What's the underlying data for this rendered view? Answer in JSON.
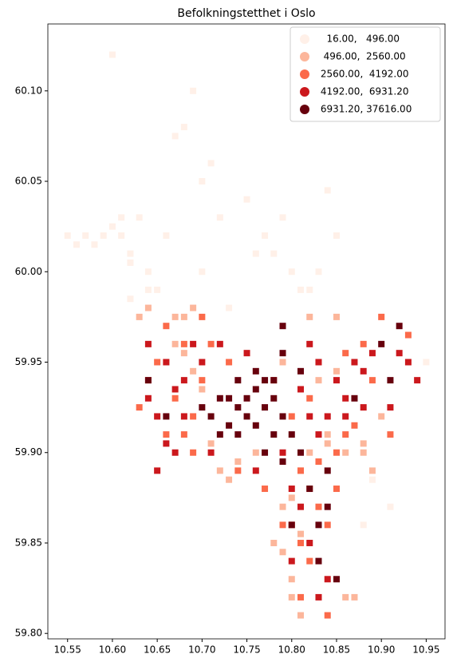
{
  "chart_data": {
    "type": "scatter",
    "title": "Befolkningstetthet i Oslo",
    "marker": "square",
    "legend": "upper right",
    "xlim": [
      10.528,
      10.971
    ],
    "ylim": [
      59.797,
      60.137
    ],
    "xticks": [
      10.55,
      {
        "value": 10.6,
        "label": "10.60"
      },
      10.65,
      {
        "value": 10.7,
        "label": "10.70"
      },
      10.75,
      {
        "value": 10.8,
        "label": "10.80"
      },
      10.85,
      {
        "value": 10.9,
        "label": "10.90"
      },
      10.95
    ],
    "yticks": [
      {
        "value": 59.8,
        "label": "59.80"
      },
      59.85,
      {
        "value": 59.9,
        "label": "59.90"
      },
      59.95,
      {
        "value": 60.0,
        "label": "60.00"
      },
      60.05,
      {
        "value": 60.1,
        "label": "60.10"
      }
    ],
    "series": [
      {
        "name": "   16.00,   496.00",
        "color": "#fff0e8",
        "x": [
          10.55,
          10.56,
          10.57,
          10.58,
          10.59,
          10.6,
          10.61,
          10.62,
          10.6,
          10.63,
          10.64,
          10.65,
          10.62,
          10.67,
          10.69,
          10.7,
          10.72,
          10.75,
          10.77,
          10.78,
          10.8,
          10.82,
          10.84,
          10.85,
          10.61,
          10.66,
          10.7,
          10.73,
          10.76,
          10.79,
          10.83,
          10.81,
          10.68,
          10.64,
          10.89,
          10.91,
          10.88,
          10.95,
          10.62,
          10.71
        ],
        "y": [
          60.02,
          60.015,
          60.02,
          60.015,
          60.02,
          60.025,
          60.02,
          60.01,
          60.12,
          60.03,
          60.0,
          59.99,
          60.005,
          60.075,
          60.1,
          60.05,
          60.03,
          60.04,
          60.02,
          60.01,
          60.0,
          59.99,
          60.045,
          60.02,
          60.03,
          60.02,
          60.0,
          59.98,
          60.01,
          60.03,
          60.0,
          59.99,
          60.08,
          59.99,
          59.885,
          59.87,
          59.86,
          59.95,
          59.985,
          60.06
        ]
      },
      {
        "name": "  496.00,  2560.00",
        "color": "#fcb69b",
        "x": [
          10.66,
          10.67,
          10.68,
          10.69,
          10.7,
          10.71,
          10.79,
          10.8,
          10.81,
          10.79,
          10.8,
          10.81,
          10.76,
          10.74,
          10.88,
          10.89,
          10.67,
          10.82,
          10.85,
          10.84,
          10.8,
          10.78,
          10.82,
          10.83,
          10.86,
          10.87,
          10.8,
          10.81,
          10.63,
          10.64,
          10.72,
          10.73,
          10.88,
          10.9,
          10.79,
          10.84,
          10.85,
          10.68,
          10.69,
          10.86
        ],
        "y": [
          59.95,
          59.96,
          59.955,
          59.945,
          59.935,
          59.905,
          59.87,
          59.86,
          59.855,
          59.845,
          59.875,
          59.89,
          59.9,
          59.895,
          59.9,
          59.89,
          59.975,
          59.975,
          59.975,
          59.91,
          59.83,
          59.85,
          59.9,
          59.94,
          59.82,
          59.82,
          59.82,
          59.81,
          59.975,
          59.98,
          59.89,
          59.885,
          59.905,
          59.92,
          59.95,
          59.905,
          59.945,
          59.975,
          59.98,
          59.9
        ]
      },
      {
        "name": " 2560.00,  4192.00",
        "color": "#fb6a4a",
        "x": [
          10.64,
          10.65,
          10.66,
          10.67,
          10.68,
          10.69,
          10.7,
          10.66,
          10.68,
          10.71,
          10.73,
          10.81,
          10.82,
          10.8,
          10.81,
          10.82,
          10.83,
          10.84,
          10.85,
          10.86,
          10.87,
          10.89,
          10.9,
          10.91,
          10.84,
          10.88,
          10.81,
          10.83,
          10.85,
          10.8,
          10.74,
          10.77,
          10.69,
          10.63,
          10.93,
          10.86,
          10.79,
          10.78,
          10.82,
          10.7
        ],
        "y": [
          59.94,
          59.95,
          59.91,
          59.93,
          59.96,
          59.92,
          59.94,
          59.97,
          59.91,
          59.96,
          59.95,
          59.89,
          59.88,
          59.86,
          59.85,
          59.84,
          59.87,
          59.86,
          59.9,
          59.91,
          59.915,
          59.94,
          59.975,
          59.91,
          59.81,
          59.96,
          59.82,
          59.895,
          59.88,
          59.92,
          59.89,
          59.88,
          59.9,
          59.925,
          59.965,
          59.955,
          59.86,
          59.94,
          59.93,
          59.975
        ]
      },
      {
        "name": " 4192.00,  6931.20",
        "color": "#cb181d",
        "x": [
          10.64,
          10.65,
          10.66,
          10.67,
          10.68,
          10.69,
          10.7,
          10.71,
          10.65,
          10.67,
          10.81,
          10.82,
          10.83,
          10.85,
          10.86,
          10.87,
          10.88,
          10.89,
          10.92,
          10.93,
          10.8,
          10.81,
          10.82,
          10.83,
          10.84,
          10.8,
          10.79,
          10.83,
          10.84,
          10.82,
          10.64,
          10.66,
          10.72,
          10.75,
          10.86,
          10.88,
          10.91,
          10.94,
          10.76,
          10.68
        ],
        "y": [
          59.96,
          59.92,
          59.95,
          59.9,
          59.94,
          59.96,
          59.95,
          59.9,
          59.89,
          59.935,
          59.935,
          59.92,
          59.95,
          59.94,
          59.93,
          59.95,
          59.925,
          59.955,
          59.955,
          59.95,
          59.88,
          59.87,
          59.85,
          59.82,
          59.83,
          59.84,
          59.9,
          59.91,
          59.92,
          59.96,
          59.93,
          59.905,
          59.96,
          59.955,
          59.92,
          59.945,
          59.925,
          59.94,
          59.89,
          59.92
        ]
      },
      {
        "name": " 6931.20, 37616.00",
        "color": "#67000d",
        "x": [
          10.72,
          10.73,
          10.74,
          10.75,
          10.76,
          10.77,
          10.78,
          10.71,
          10.73,
          10.75,
          10.77,
          10.79,
          10.7,
          10.72,
          10.74,
          10.76,
          10.78,
          10.8,
          10.74,
          10.76,
          10.78,
          10.79,
          10.81,
          10.77,
          10.79,
          10.82,
          10.84,
          10.9,
          10.91,
          10.92,
          10.83,
          10.85,
          10.8,
          10.87,
          10.64,
          10.66,
          10.83,
          10.84,
          10.79,
          10.81
        ],
        "y": [
          59.93,
          59.93,
          59.925,
          59.93,
          59.935,
          59.94,
          59.93,
          59.92,
          59.915,
          59.92,
          59.925,
          59.92,
          59.925,
          59.91,
          59.91,
          59.915,
          59.91,
          59.91,
          59.94,
          59.945,
          59.94,
          59.955,
          59.9,
          59.9,
          59.895,
          59.88,
          59.87,
          59.96,
          59.94,
          59.97,
          59.84,
          59.83,
          59.86,
          59.93,
          59.94,
          59.92,
          59.86,
          59.89,
          59.97,
          59.945
        ]
      }
    ]
  }
}
